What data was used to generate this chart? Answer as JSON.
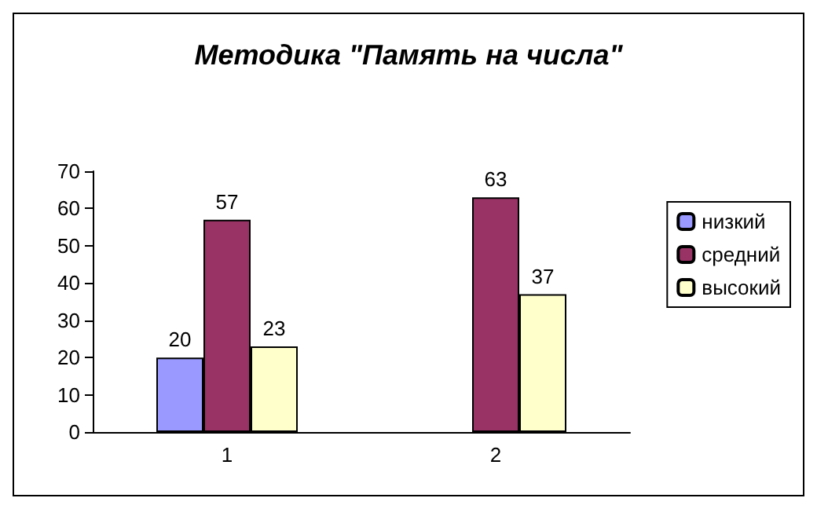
{
  "chart_data": {
    "type": "bar",
    "title": "Методика \"Память на числа\"",
    "categories": [
      "1",
      "2"
    ],
    "series": [
      {
        "name": "низкий",
        "color": "#9999ff",
        "values": [
          20,
          null
        ]
      },
      {
        "name": "средний",
        "color": "#993366",
        "values": [
          57,
          63
        ]
      },
      {
        "name": "высокий",
        "color": "#ffffcc",
        "values": [
          23,
          37
        ]
      }
    ],
    "ylim": [
      0,
      70
    ],
    "yticks": [
      0,
      10,
      20,
      30,
      40,
      50,
      60,
      70
    ],
    "grid": false,
    "legend": "right",
    "data_labels": true
  }
}
